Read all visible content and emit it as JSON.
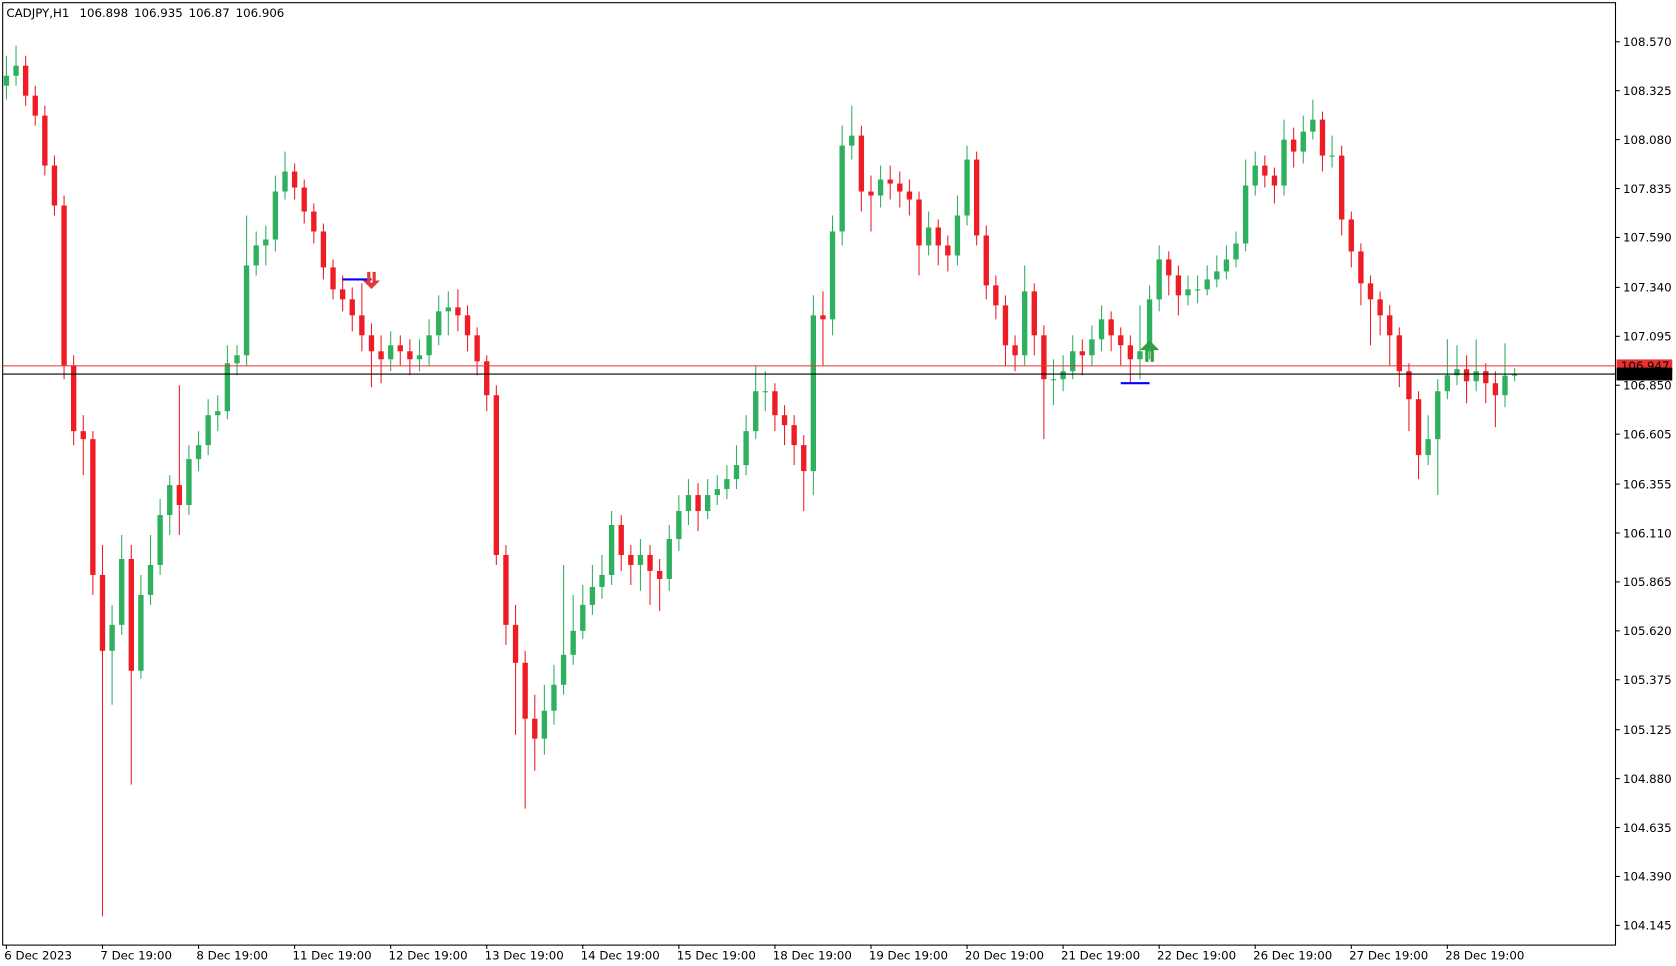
{
  "chart_data": {
    "type": "candlestick",
    "symbol": "CADJPY,H1",
    "up_color": "#2fb05f",
    "down_color": "#ee1c25",
    "grid": false,
    "categories": [
      "6 Dec 2023",
      null,
      null,
      null,
      null,
      null,
      null,
      null,
      null,
      null,
      "7 Dec 19:00",
      null,
      null,
      null,
      null,
      null,
      null,
      null,
      null,
      null,
      "8 Dec 19:00",
      null,
      null,
      null,
      null,
      null,
      null,
      null,
      null,
      null,
      "11 Dec 19:00",
      null,
      null,
      null,
      null,
      null,
      null,
      null,
      null,
      null,
      "12 Dec 19:00",
      null,
      null,
      null,
      null,
      null,
      null,
      null,
      null,
      null,
      "13 Dec 19:00",
      null,
      null,
      null,
      null,
      null,
      null,
      null,
      null,
      null,
      "14 Dec 19:00",
      null,
      null,
      null,
      null,
      null,
      null,
      null,
      null,
      null,
      "15 Dec 19:00",
      null,
      null,
      null,
      null,
      null,
      null,
      null,
      null,
      null,
      "18 Dec 19:00",
      null,
      null,
      null,
      null,
      null,
      null,
      null,
      null,
      null,
      "19 Dec 19:00",
      null,
      null,
      null,
      null,
      null,
      null,
      null,
      null,
      null,
      "20 Dec 19:00",
      null,
      null,
      null,
      null,
      null,
      null,
      null,
      null,
      null,
      "21 Dec 19:00",
      null,
      null,
      null,
      null,
      null,
      null,
      null,
      null,
      null,
      "22 Dec 19:00",
      null,
      null,
      null,
      null,
      null,
      null,
      null,
      null,
      null,
      "26 Dec 19:00",
      null,
      null,
      null,
      null,
      null,
      null,
      null,
      null,
      null,
      "27 Dec 19:00",
      null,
      null,
      null,
      null,
      null,
      null,
      null,
      null,
      null,
      "28 Dec 19:00",
      null,
      null,
      null,
      null,
      null,
      null,
      null
    ],
    "open": [
      108.35,
      108.4,
      108.45,
      108.3,
      108.2,
      107.95,
      107.75,
      106.95,
      106.62,
      106.58,
      105.9,
      105.52,
      105.65,
      105.98,
      105.42,
      105.8,
      105.95,
      106.2,
      106.35,
      106.25,
      106.48,
      106.55,
      106.7,
      106.72,
      106.96,
      107.0,
      107.45,
      107.55,
      107.58,
      107.82,
      107.92,
      107.84,
      107.72,
      107.62,
      107.44,
      107.33,
      107.28,
      107.2,
      107.1,
      107.02,
      106.98,
      107.05,
      107.02,
      106.98,
      107.0,
      107.1,
      107.22,
      107.24,
      107.2,
      107.1,
      106.97,
      106.8,
      106.0,
      105.65,
      105.46,
      105.18,
      105.08,
      105.22,
      105.35,
      105.5,
      105.62,
      105.75,
      105.84,
      105.9,
      106.15,
      106.0,
      105.95,
      106.0,
      105.92,
      105.88,
      106.08,
      106.22,
      106.3,
      106.22,
      106.3,
      106.33,
      106.38,
      106.45,
      106.62,
      106.82,
      106.82,
      106.7,
      106.65,
      106.55,
      106.42,
      107.2,
      107.18,
      107.62,
      108.05,
      108.1,
      107.82,
      107.8,
      107.88,
      107.86,
      107.82,
      107.78,
      107.55,
      107.64,
      107.55,
      107.5,
      107.7,
      107.98,
      107.6,
      107.35,
      107.25,
      107.05,
      107.0,
      107.32,
      107.1,
      106.88,
      106.88,
      106.92,
      107.02,
      107.0,
      107.08,
      107.18,
      107.1,
      107.05,
      106.98,
      107.02,
      107.28,
      107.48,
      107.4,
      107.3,
      107.33,
      107.33,
      107.38,
      107.42,
      107.48,
      107.56,
      107.85,
      107.95,
      107.9,
      107.85,
      108.08,
      108.02,
      108.12,
      108.18,
      108.0,
      108.0,
      107.68,
      107.52,
      107.36,
      107.28,
      107.2,
      107.1,
      106.92,
      106.78,
      106.5,
      106.58,
      106.82,
      106.9,
      106.93,
      106.87,
      106.92,
      106.86,
      106.8,
      106.898
    ],
    "high": [
      108.5,
      108.55,
      108.5,
      108.35,
      108.25,
      108.0,
      107.8,
      107.0,
      106.7,
      106.62,
      106.05,
      105.75,
      106.1,
      106.05,
      105.9,
      106.1,
      106.28,
      106.4,
      106.85,
      106.55,
      106.62,
      106.78,
      106.8,
      107.05,
      107.05,
      107.7,
      107.62,
      107.65,
      107.9,
      108.02,
      107.96,
      107.88,
      107.76,
      107.66,
      107.48,
      107.4,
      107.34,
      107.36,
      107.16,
      107.1,
      107.12,
      107.1,
      107.08,
      107.08,
      107.18,
      107.3,
      107.32,
      107.33,
      107.25,
      107.14,
      107.0,
      106.85,
      106.05,
      105.75,
      105.52,
      105.3,
      105.35,
      105.45,
      105.95,
      105.8,
      105.85,
      105.95,
      106.0,
      106.22,
      106.2,
      106.05,
      106.08,
      106.05,
      105.98,
      106.15,
      106.3,
      106.38,
      106.36,
      106.38,
      106.4,
      106.45,
      106.55,
      106.7,
      106.95,
      106.92,
      106.86,
      106.75,
      106.7,
      106.6,
      107.3,
      107.32,
      107.7,
      108.15,
      108.25,
      108.15,
      107.9,
      107.95,
      107.95,
      107.92,
      107.88,
      107.82,
      107.72,
      107.68,
      107.6,
      107.8,
      108.05,
      108.02,
      107.65,
      107.4,
      107.3,
      107.1,
      107.45,
      107.36,
      107.15,
      106.98,
      107.0,
      107.1,
      107.08,
      107.15,
      107.25,
      107.22,
      107.14,
      107.1,
      107.25,
      107.35,
      107.55,
      107.52,
      107.45,
      107.4,
      107.4,
      107.45,
      107.5,
      107.55,
      107.62,
      107.98,
      108.02,
      108.0,
      107.94,
      108.18,
      108.14,
      108.2,
      108.28,
      108.22,
      108.1,
      108.05,
      107.72,
      107.56,
      107.4,
      107.32,
      107.25,
      107.14,
      106.96,
      106.82,
      106.7,
      106.88,
      107.08,
      107.05,
      107.0,
      107.08,
      106.96,
      106.92,
      107.06,
      106.935
    ],
    "low": [
      108.28,
      108.35,
      108.25,
      108.15,
      107.9,
      107.7,
      106.88,
      106.55,
      106.4,
      105.8,
      104.19,
      105.25,
      105.6,
      104.85,
      105.38,
      105.75,
      105.9,
      106.1,
      106.1,
      106.2,
      106.42,
      106.5,
      106.62,
      106.68,
      106.9,
      106.95,
      107.4,
      107.45,
      107.52,
      107.78,
      107.78,
      107.66,
      107.56,
      107.38,
      107.28,
      107.22,
      107.12,
      107.02,
      106.84,
      106.86,
      106.92,
      106.95,
      106.9,
      106.92,
      106.95,
      107.05,
      107.1,
      107.12,
      107.02,
      106.9,
      106.72,
      105.95,
      105.55,
      105.1,
      104.73,
      104.92,
      105.0,
      105.15,
      105.3,
      105.45,
      105.58,
      105.7,
      105.78,
      105.85,
      105.92,
      105.85,
      105.82,
      105.75,
      105.72,
      105.82,
      106.02,
      106.15,
      106.12,
      106.18,
      106.25,
      106.28,
      106.33,
      106.4,
      106.58,
      106.72,
      106.62,
      106.55,
      106.45,
      106.22,
      106.3,
      106.95,
      107.1,
      107.55,
      107.98,
      107.72,
      107.62,
      107.74,
      107.78,
      107.74,
      107.7,
      107.4,
      107.5,
      107.45,
      107.42,
      107.45,
      107.65,
      107.55,
      107.28,
      107.18,
      106.95,
      106.92,
      106.95,
      107.0,
      106.58,
      106.75,
      106.82,
      106.88,
      106.9,
      106.95,
      107.02,
      107.02,
      106.95,
      106.86,
      106.88,
      106.98,
      107.22,
      107.3,
      107.2,
      107.25,
      107.26,
      107.3,
      107.34,
      107.38,
      107.44,
      107.52,
      107.8,
      107.84,
      107.76,
      107.8,
      107.94,
      107.96,
      108.08,
      107.92,
      107.94,
      107.6,
      107.44,
      107.25,
      107.05,
      107.1,
      106.95,
      106.84,
      106.62,
      106.38,
      106.45,
      106.3,
      106.78,
      106.85,
      106.76,
      106.82,
      106.76,
      106.64,
      106.74,
      106.87
    ],
    "close": [
      108.4,
      108.45,
      108.3,
      108.2,
      107.95,
      107.75,
      106.95,
      106.62,
      106.58,
      105.9,
      105.52,
      105.65,
      105.98,
      105.42,
      105.8,
      105.95,
      106.2,
      106.35,
      106.25,
      106.48,
      106.55,
      106.7,
      106.72,
      106.96,
      107.0,
      107.45,
      107.55,
      107.58,
      107.82,
      107.92,
      107.84,
      107.72,
      107.62,
      107.44,
      107.33,
      107.28,
      107.2,
      107.1,
      107.02,
      106.98,
      107.05,
      107.02,
      106.98,
      107.0,
      107.1,
      107.22,
      107.24,
      107.2,
      107.1,
      106.97,
      106.8,
      106.0,
      105.65,
      105.46,
      105.18,
      105.08,
      105.22,
      105.35,
      105.5,
      105.62,
      105.75,
      105.84,
      105.9,
      106.15,
      106.0,
      105.95,
      106.0,
      105.92,
      105.88,
      106.08,
      106.22,
      106.3,
      106.22,
      106.3,
      106.33,
      106.38,
      106.45,
      106.62,
      106.82,
      106.82,
      106.7,
      106.65,
      106.55,
      106.42,
      107.2,
      107.18,
      107.62,
      108.05,
      108.1,
      107.82,
      107.8,
      107.88,
      107.86,
      107.82,
      107.78,
      107.55,
      107.64,
      107.55,
      107.5,
      107.7,
      107.98,
      107.6,
      107.35,
      107.25,
      107.05,
      107.0,
      107.32,
      107.1,
      106.88,
      106.88,
      106.92,
      107.02,
      107.0,
      107.08,
      107.18,
      107.1,
      107.05,
      106.98,
      107.02,
      107.28,
      107.48,
      107.4,
      107.3,
      107.33,
      107.33,
      107.38,
      107.42,
      107.48,
      107.56,
      107.85,
      107.95,
      107.9,
      107.85,
      108.08,
      108.02,
      108.12,
      108.18,
      108.0,
      108.0,
      107.68,
      107.52,
      107.36,
      107.28,
      107.2,
      107.1,
      106.92,
      106.78,
      106.5,
      106.58,
      106.82,
      106.9,
      106.93,
      106.87,
      106.92,
      106.86,
      106.8,
      106.898,
      106.906
    ],
    "ylim": [
      104.049,
      108.763
    ],
    "yticks": [
      {
        "value": 108.57,
        "label": "108.570"
      },
      108.325,
      {
        "value": 108.08,
        "label": "108.080"
      },
      107.835,
      {
        "value": 107.59,
        "label": "107.590"
      },
      {
        "value": 107.34,
        "label": "107.340"
      },
      107.095,
      {
        "value": 106.85,
        "label": "106.850"
      },
      106.605,
      106.355,
      {
        "value": 106.11,
        "label": "106.110"
      },
      105.865,
      {
        "value": 105.62,
        "label": "105.620"
      },
      105.375,
      105.125,
      {
        "value": 104.88,
        "label": "104.880"
      },
      104.635,
      {
        "value": 104.39,
        "label": "104.390"
      },
      104.145
    ],
    "price_lines": [
      {
        "value": 106.947,
        "color": "#e83030",
        "text_color": "#ffffff"
      },
      {
        "value": 106.906,
        "color": "#000000",
        "text_color": "#ffffff"
      }
    ],
    "signals": [
      {
        "x0": 35,
        "x1": 38,
        "price": 107.38,
        "direction": "down",
        "color": "#e53935",
        "line_color": "#0000ff"
      },
      {
        "x0": 116,
        "x1": 119,
        "price": 106.86,
        "direction": "up",
        "color": "#2ea043",
        "line_color": "#0000ff"
      }
    ]
  }
}
